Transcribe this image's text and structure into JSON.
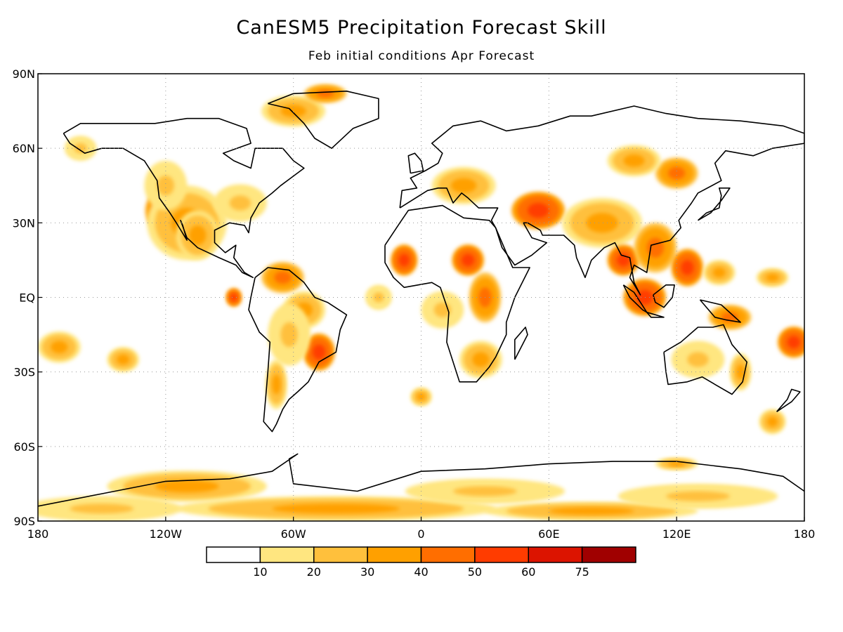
{
  "title": "CanESM5 Precipitation Forecast Skill",
  "subtitle": "Feb initial conditions  Apr Forecast",
  "x_ticks": [
    {
      "lon": -180,
      "label": "180"
    },
    {
      "lon": -120,
      "label": "120W"
    },
    {
      "lon": -60,
      "label": "60W"
    },
    {
      "lon": 0,
      "label": "0"
    },
    {
      "lon": 60,
      "label": "60E"
    },
    {
      "lon": 120,
      "label": "120E"
    },
    {
      "lon": 180,
      "label": "180"
    }
  ],
  "y_ticks": [
    {
      "lat": 90,
      "label": "90N"
    },
    {
      "lat": 60,
      "label": "60N"
    },
    {
      "lat": 30,
      "label": "30N"
    },
    {
      "lat": 0,
      "label": "EQ"
    },
    {
      "lat": -30,
      "label": "30S"
    },
    {
      "lat": -60,
      "label": "60S"
    },
    {
      "lat": -90,
      "label": "90S"
    }
  ],
  "colorbar": {
    "colors": [
      "#ffffff",
      "#ffe680",
      "#ffc03c",
      "#ffa000",
      "#ff6e00",
      "#ff3c00",
      "#dc1400",
      "#a00000"
    ],
    "labels": [
      "10",
      "20",
      "30",
      "40",
      "50",
      "60",
      "75"
    ]
  },
  "map_data": {
    "lon_range": [
      -180,
      180
    ],
    "lat_range": [
      -90,
      90
    ],
    "grid": "dotted",
    "skill_regions": [
      {
        "lon": -117,
        "lat": 35,
        "level": 5,
        "rx": 10,
        "ry": 8
      },
      {
        "lon": -110,
        "lat": 30,
        "level": 3,
        "rx": 15,
        "ry": 12
      },
      {
        "lon": -120,
        "lat": 45,
        "level": 2,
        "rx": 8,
        "ry": 8
      },
      {
        "lon": -105,
        "lat": 25,
        "level": 3,
        "rx": 8,
        "ry": 8
      },
      {
        "lon": -85,
        "lat": 38,
        "level": 2,
        "rx": 10,
        "ry": 6
      },
      {
        "lon": -60,
        "lat": 75,
        "level": 3,
        "rx": 12,
        "ry": 5
      },
      {
        "lon": -45,
        "lat": 82,
        "level": 4,
        "rx": 8,
        "ry": 3
      },
      {
        "lon": -65,
        "lat": 8,
        "level": 4,
        "rx": 8,
        "ry": 5
      },
      {
        "lon": -55,
        "lat": -5,
        "level": 3,
        "rx": 8,
        "ry": 6
      },
      {
        "lon": -48,
        "lat": -22,
        "level": 5,
        "rx": 6,
        "ry": 6
      },
      {
        "lon": -62,
        "lat": -15,
        "level": 2,
        "rx": 8,
        "ry": 10
      },
      {
        "lon": -68,
        "lat": -35,
        "level": 3,
        "rx": 4,
        "ry": 8
      },
      {
        "lon": -88,
        "lat": 0,
        "level": 5,
        "rx": 3,
        "ry": 3
      },
      {
        "lon": -8,
        "lat": 15,
        "level": 5,
        "rx": 5,
        "ry": 5
      },
      {
        "lon": 22,
        "lat": 15,
        "level": 5,
        "rx": 6,
        "ry": 5
      },
      {
        "lon": 30,
        "lat": 0,
        "level": 4,
        "rx": 6,
        "ry": 8
      },
      {
        "lon": 28,
        "lat": -25,
        "level": 3,
        "rx": 8,
        "ry": 6
      },
      {
        "lon": 10,
        "lat": -5,
        "level": 2,
        "rx": 8,
        "ry": 6
      },
      {
        "lon": 0,
        "lat": -40,
        "level": 3,
        "rx": 4,
        "ry": 3
      },
      {
        "lon": 20,
        "lat": 45,
        "level": 3,
        "rx": 12,
        "ry": 6
      },
      {
        "lon": 55,
        "lat": 35,
        "level": 5,
        "rx": 10,
        "ry": 6
      },
      {
        "lon": 85,
        "lat": 30,
        "level": 3,
        "rx": 15,
        "ry": 8
      },
      {
        "lon": 95,
        "lat": 15,
        "level": 5,
        "rx": 6,
        "ry": 5
      },
      {
        "lon": 110,
        "lat": 20,
        "level": 4,
        "rx": 8,
        "ry": 8
      },
      {
        "lon": 105,
        "lat": 0,
        "level": 5,
        "rx": 8,
        "ry": 6
      },
      {
        "lon": 125,
        "lat": 12,
        "level": 5,
        "rx": 6,
        "ry": 6
      },
      {
        "lon": 120,
        "lat": 50,
        "level": 4,
        "rx": 8,
        "ry": 5
      },
      {
        "lon": 100,
        "lat": 55,
        "level": 3,
        "rx": 10,
        "ry": 5
      },
      {
        "lon": 140,
        "lat": 10,
        "level": 3,
        "rx": 6,
        "ry": 4
      },
      {
        "lon": 165,
        "lat": 8,
        "level": 3,
        "rx": 6,
        "ry": 3
      },
      {
        "lon": 175,
        "lat": -18,
        "level": 5,
        "rx": 6,
        "ry": 5
      },
      {
        "lon": 130,
        "lat": -25,
        "level": 2,
        "rx": 10,
        "ry": 6
      },
      {
        "lon": 150,
        "lat": -30,
        "level": 3,
        "rx": 4,
        "ry": 6
      },
      {
        "lon": 145,
        "lat": -8,
        "level": 4,
        "rx": 8,
        "ry": 4
      },
      {
        "lon": 165,
        "lat": -50,
        "level": 3,
        "rx": 5,
        "ry": 4
      },
      {
        "lon": -170,
        "lat": -20,
        "level": 3,
        "rx": 8,
        "ry": 5
      },
      {
        "lon": -140,
        "lat": -25,
        "level": 3,
        "rx": 6,
        "ry": 4
      },
      {
        "lon": -160,
        "lat": 60,
        "level": 2,
        "rx": 6,
        "ry": 4
      },
      {
        "lon": -20,
        "lat": 0,
        "level": 2,
        "rx": 5,
        "ry": 4
      },
      {
        "lon": -110,
        "lat": -76,
        "level": 3,
        "rx": 30,
        "ry": 5
      },
      {
        "lon": -40,
        "lat": -85,
        "level": 3,
        "rx": 60,
        "ry": 4
      },
      {
        "lon": 80,
        "lat": -86,
        "level": 3,
        "rx": 40,
        "ry": 3
      },
      {
        "lon": 30,
        "lat": -78,
        "level": 2,
        "rx": 30,
        "ry": 4
      },
      {
        "lon": 130,
        "lat": -80,
        "level": 2,
        "rx": 30,
        "ry": 4
      },
      {
        "lon": -150,
        "lat": -85,
        "level": 2,
        "rx": 30,
        "ry": 4
      },
      {
        "lon": 120,
        "lat": -67,
        "level": 3,
        "rx": 8,
        "ry": 2
      }
    ]
  }
}
